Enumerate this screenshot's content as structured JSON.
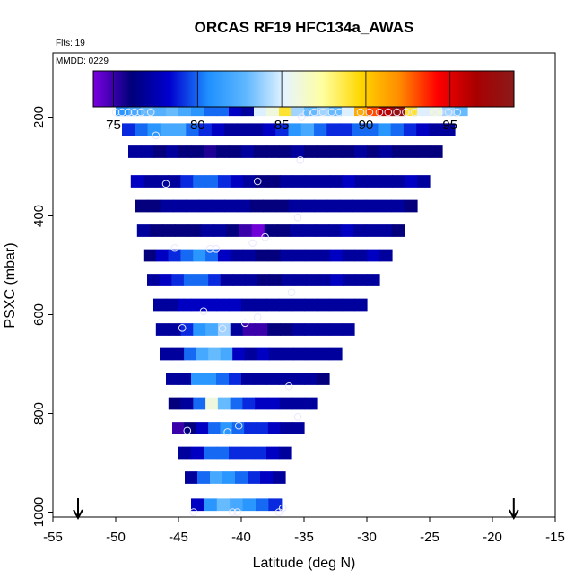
{
  "chart_data": {
    "type": "heatmap",
    "title": "ORCAS RF19 HFC134a_AWAS",
    "annotations": {
      "flights": "Flts: 19",
      "date": "MMDD: 0229"
    },
    "xlabel": "Latitude (deg N)",
    "ylabel": "PSXC (mbar)",
    "xlim": [
      -55,
      -15
    ],
    "ylim": [
      1010,
      70
    ],
    "x_ticks": [
      -55,
      -50,
      -45,
      -40,
      -35,
      -30,
      -25,
      -20,
      -15
    ],
    "y_ticks": [
      200,
      400,
      600,
      800,
      1000
    ],
    "colorbar": {
      "min": 73.8,
      "max": 98.8,
      "ticks": [
        75,
        80,
        85,
        90,
        95
      ],
      "placement": "top",
      "colors": [
        "#7a00e0",
        "#00007a",
        "#0000d0",
        "#1e90ff",
        "#60b8ff",
        "#e6f4ff",
        "#ffffa0",
        "#ffd700",
        "#ff8c00",
        "#ff0000",
        "#a80000",
        "#8b1a1a"
      ]
    },
    "arrows_lat": [
      -53,
      -18.3
    ],
    "band_step_mbar": 25,
    "bands": [
      {
        "p": 185,
        "lat_min": -50.0,
        "lat_max": -22.0,
        "values": [
          81,
          82,
          83,
          82.5,
          83,
          82,
          81,
          80,
          80,
          78,
          77,
          85,
          86,
          89,
          84,
          83,
          84,
          83,
          85,
          91,
          93,
          96,
          98,
          89,
          85,
          86,
          84,
          83
        ]
      },
      {
        "p": 225,
        "lat_min": -49.5,
        "lat_max": -23.0,
        "values": [
          79,
          80,
          81,
          82,
          82,
          80,
          79,
          78,
          77,
          77,
          77,
          78,
          79,
          81,
          82,
          80,
          79,
          79,
          80,
          80,
          81,
          80,
          79,
          78,
          77,
          77
        ]
      },
      {
        "p": 270,
        "lat_min": -49.0,
        "lat_max": -24.0,
        "values": [
          77,
          77,
          76,
          77,
          76,
          76,
          75.5,
          76,
          76,
          77,
          76,
          76,
          76,
          77,
          76,
          76,
          76,
          76,
          77,
          76,
          77,
          76,
          76,
          76,
          76
        ]
      },
      {
        "p": 330,
        "lat_min": -48.8,
        "lat_max": -25.0,
        "values": [
          78,
          77,
          77,
          77,
          79,
          80,
          80,
          79,
          78,
          77,
          76,
          76,
          77,
          77,
          77,
          77,
          77,
          78,
          77,
          77,
          77,
          77,
          78,
          77
        ]
      },
      {
        "p": 380,
        "lat_min": -48.5,
        "lat_max": -26.0,
        "values": [
          76,
          76,
          77,
          77,
          77,
          77,
          77,
          77,
          77,
          76,
          76,
          76,
          77,
          77,
          77,
          77,
          77,
          77,
          77,
          77,
          77,
          76
        ]
      },
      {
        "p": 430,
        "lat_min": -48.3,
        "lat_max": -27.0,
        "values": [
          77,
          76,
          76,
          76,
          76,
          77,
          77,
          76,
          75,
          74,
          76,
          76,
          77,
          77,
          77,
          77,
          78,
          77,
          77,
          77,
          76
        ]
      },
      {
        "p": 480,
        "lat_min": -47.8,
        "lat_max": -28.0,
        "values": [
          76,
          78,
          79,
          80,
          81,
          80,
          78,
          77,
          77,
          76,
          76,
          77,
          77,
          77,
          77,
          78,
          77,
          77,
          78,
          77
        ]
      },
      {
        "p": 530,
        "lat_min": -47.5,
        "lat_max": -29.0,
        "values": [
          77,
          78,
          79,
          80,
          80,
          79,
          77,
          77,
          77,
          76,
          76,
          77,
          77,
          77,
          77,
          78,
          77,
          77,
          77
        ]
      },
      {
        "p": 580,
        "lat_min": -47.0,
        "lat_max": -30.0,
        "values": [
          77,
          77,
          78,
          78,
          78,
          78,
          78,
          77,
          77,
          77,
          77,
          77,
          77,
          77,
          77,
          77,
          77
        ]
      },
      {
        "p": 630,
        "lat_min": -46.8,
        "lat_max": -31.0,
        "values": [
          77,
          77,
          79,
          81,
          82,
          84,
          77,
          75,
          75,
          76,
          76,
          77,
          77,
          77,
          77,
          77
        ]
      },
      {
        "p": 680,
        "lat_min": -46.5,
        "lat_max": -32.0,
        "values": [
          77,
          77,
          80,
          82,
          83,
          82,
          78,
          77,
          78,
          77,
          77,
          77,
          77,
          77,
          77
        ]
      },
      {
        "p": 730,
        "lat_min": -46.0,
        "lat_max": -33.0,
        "values": [
          77,
          77,
          81,
          81,
          80,
          79,
          77,
          77,
          77,
          77,
          77,
          77,
          76
        ]
      },
      {
        "p": 780,
        "lat_min": -45.8,
        "lat_max": -34.0,
        "values": [
          76,
          77,
          80,
          86,
          83,
          80,
          79,
          78,
          78,
          77,
          77,
          77
        ]
      },
      {
        "p": 830,
        "lat_min": -45.5,
        "lat_max": -35.0,
        "values": [
          75,
          76,
          78,
          80,
          81,
          80,
          79,
          79,
          78,
          77,
          77
        ]
      },
      {
        "p": 880,
        "lat_min": -45.0,
        "lat_max": -36.0,
        "values": [
          77,
          78,
          80,
          80,
          79,
          79,
          79,
          78,
          77
        ]
      },
      {
        "p": 930,
        "lat_min": -44.5,
        "lat_max": -36.5,
        "values": [
          77,
          80,
          82,
          81,
          80,
          79,
          78,
          77
        ]
      },
      {
        "p": 985,
        "lat_min": -44.0,
        "lat_max": -36.8,
        "values": [
          78,
          81,
          83,
          82,
          81,
          80,
          79
        ]
      }
    ],
    "sample_points": [
      {
        "lat": -50,
        "p": 190
      },
      {
        "lat": -49.5,
        "p": 190
      },
      {
        "lat": -49,
        "p": 190
      },
      {
        "lat": -48.5,
        "p": 190
      },
      {
        "lat": -48,
        "p": 190
      },
      {
        "lat": -47.2,
        "p": 190
      },
      {
        "lat": -35.2,
        "p": 200
      },
      {
        "lat": -34.8,
        "p": 192
      },
      {
        "lat": -34.2,
        "p": 190
      },
      {
        "lat": -33.5,
        "p": 190
      },
      {
        "lat": -32.8,
        "p": 190
      },
      {
        "lat": -32.2,
        "p": 190
      },
      {
        "lat": -30.5,
        "p": 190
      },
      {
        "lat": -29.8,
        "p": 190
      },
      {
        "lat": -29,
        "p": 190
      },
      {
        "lat": -28.3,
        "p": 190
      },
      {
        "lat": -27.6,
        "p": 190
      },
      {
        "lat": -26.9,
        "p": 190
      },
      {
        "lat": -26.2,
        "p": 190
      },
      {
        "lat": -25.5,
        "p": 190
      },
      {
        "lat": -24.9,
        "p": 190
      },
      {
        "lat": -24.2,
        "p": 190
      },
      {
        "lat": -23.5,
        "p": 190
      },
      {
        "lat": -22.8,
        "p": 190
      },
      {
        "lat": -46.8,
        "p": 237
      },
      {
        "lat": -35.3,
        "p": 287
      },
      {
        "lat": -46,
        "p": 335
      },
      {
        "lat": -38.7,
        "p": 330
      },
      {
        "lat": -35.5,
        "p": 403
      },
      {
        "lat": -45.3,
        "p": 465
      },
      {
        "lat": -42.5,
        "p": 467
      },
      {
        "lat": -42,
        "p": 467
      },
      {
        "lat": -39.1,
        "p": 455
      },
      {
        "lat": -38.1,
        "p": 443
      },
      {
        "lat": -36,
        "p": 555
      },
      {
        "lat": -43,
        "p": 593
      },
      {
        "lat": -38.7,
        "p": 605
      },
      {
        "lat": -44.7,
        "p": 627
      },
      {
        "lat": -41.5,
        "p": 628
      },
      {
        "lat": -39.7,
        "p": 617
      },
      {
        "lat": -36.2,
        "p": 745
      },
      {
        "lat": -35.5,
        "p": 807
      },
      {
        "lat": -40.2,
        "p": 825
      },
      {
        "lat": -44.3,
        "p": 835
      },
      {
        "lat": -41.1,
        "p": 838
      },
      {
        "lat": -43.8,
        "p": 1000
      },
      {
        "lat": -40.7,
        "p": 1000
      },
      {
        "lat": -40.3,
        "p": 1000
      },
      {
        "lat": -37,
        "p": 1000
      },
      {
        "lat": -36.7,
        "p": 992
      }
    ]
  }
}
